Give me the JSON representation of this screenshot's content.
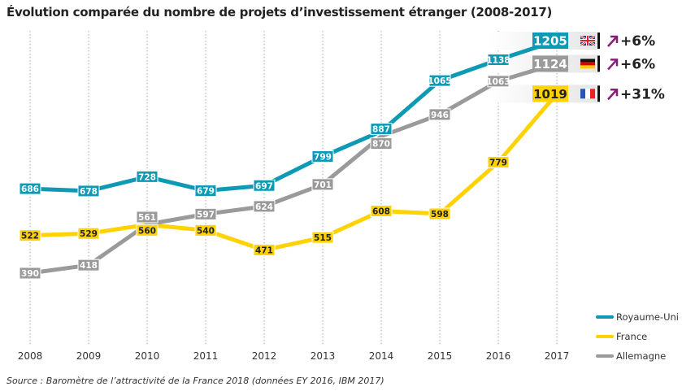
{
  "chart_data": {
    "type": "line",
    "title": "Évolution comparée du nombre de projets d’investissement étranger (2008-2017)",
    "source": "Source : Baromètre de l’attractivité de la France 2018 (données EY 2016, IBM 2017)",
    "x": [
      "2008",
      "2009",
      "2010",
      "2011",
      "2012",
      "2013",
      "2014",
      "2015",
      "2016",
      "2017"
    ],
    "ylim": [
      390,
      1205
    ],
    "grid": "vertical dotted",
    "legend": "bottom-right",
    "series": [
      {
        "name": "Royaume-Uni",
        "color": "#0e9ab4",
        "values": [
          686,
          678,
          728,
          679,
          697,
          799,
          887,
          1065,
          1138,
          1205
        ],
        "change": "+6%",
        "flag": "uk-flag-icon",
        "label_text": "#ffffff"
      },
      {
        "name": "France",
        "color": "#ffd200",
        "values": [
          522,
          529,
          560,
          540,
          471,
          515,
          608,
          598,
          779,
          1019
        ],
        "change": "+31%",
        "flag": "france-flag-icon",
        "label_text": "#222222"
      },
      {
        "name": "Allemagne",
        "color": "#9a9a9a",
        "values": [
          390,
          418,
          561,
          597,
          624,
          701,
          870,
          946,
          1063,
          1124
        ],
        "change": "+6%",
        "flag": "germany-flag-icon",
        "label_text": "#ffffff"
      }
    ],
    "arrow_color": "#8a1c7c"
  }
}
